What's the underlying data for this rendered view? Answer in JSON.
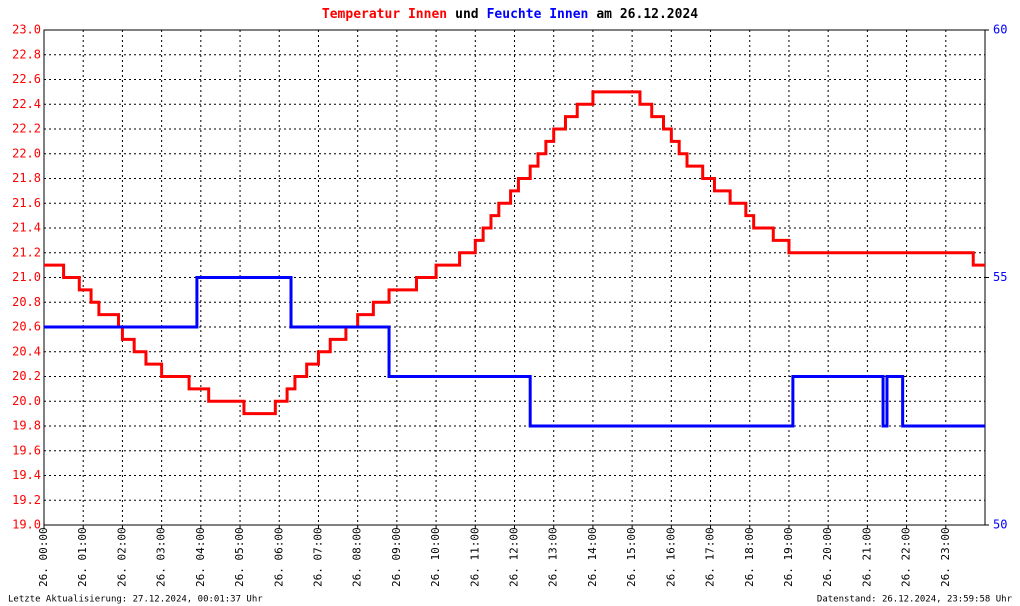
{
  "chart_data": {
    "type": "line",
    "title_parts": [
      {
        "text": "Temperatur Innen",
        "color": "#ff0000"
      },
      {
        "text": "und",
        "color": "#000000"
      },
      {
        "text": "Feuchte Innen",
        "color": "#0000ff"
      },
      {
        "text": "am 26.12.2024",
        "color": "#000000"
      }
    ],
    "footer_left": "Letzte Aktualisierung: 27.12.2024, 00:01:37 Uhr",
    "footer_right": "Datenstand: 26.12.2024, 23:59:58 Uhr",
    "grid": true,
    "xlim": [
      0,
      24
    ],
    "xticks": [
      {
        "value": 0,
        "label": "26. 00:00"
      },
      {
        "value": 1,
        "label": "26. 01:00"
      },
      {
        "value": 2,
        "label": "26. 02:00"
      },
      {
        "value": 3,
        "label": "26. 03:00"
      },
      {
        "value": 4,
        "label": "26. 04:00"
      },
      {
        "value": 5,
        "label": "26. 05:00"
      },
      {
        "value": 6,
        "label": "26. 06:00"
      },
      {
        "value": 7,
        "label": "26. 07:00"
      },
      {
        "value": 8,
        "label": "26. 08:00"
      },
      {
        "value": 9,
        "label": "26. 09:00"
      },
      {
        "value": 10,
        "label": "26. 10:00"
      },
      {
        "value": 11,
        "label": "26. 11:00"
      },
      {
        "value": 12,
        "label": "26. 12:00"
      },
      {
        "value": 13,
        "label": "26. 13:00"
      },
      {
        "value": 14,
        "label": "26. 14:00"
      },
      {
        "value": 15,
        "label": "26. 15:00"
      },
      {
        "value": 16,
        "label": "26. 16:00"
      },
      {
        "value": 17,
        "label": "26. 17:00"
      },
      {
        "value": 18,
        "label": "26. 18:00"
      },
      {
        "value": 19,
        "label": "26. 19:00"
      },
      {
        "value": 20,
        "label": "26. 20:00"
      },
      {
        "value": 21,
        "label": "26. 21:00"
      },
      {
        "value": 22,
        "label": "26. 22:00"
      },
      {
        "value": 23,
        "label": "26. 23:00"
      }
    ],
    "ylim": [
      19,
      23
    ],
    "yticks": [
      {
        "value": 19,
        "label": "19.0"
      },
      19.2,
      19.4,
      19.6,
      19.8,
      {
        "value": 20,
        "label": "20.0"
      },
      20.2,
      20.4,
      20.6,
      20.8,
      {
        "value": 21,
        "label": "21.0"
      },
      21.2,
      21.4,
      21.6,
      21.8,
      {
        "value": 22,
        "label": "22.0"
      },
      22.2,
      22.4,
      22.6,
      22.8,
      {
        "value": 23,
        "label": "23.0"
      }
    ],
    "y_color": "#ff0000",
    "y2lim": [
      50,
      60
    ],
    "y2ticks": [
      50,
      55,
      60
    ],
    "y2_color": "#0000ff",
    "series": [
      {
        "name": "Temperatur Innen",
        "color": "#ff0000",
        "x": [
          0,
          0.5,
          0.5,
          0.9,
          0.9,
          1.2,
          1.2,
          1.4,
          1.4,
          1.9,
          1.9,
          2.0,
          2.0,
          2.3,
          2.3,
          2.6,
          2.6,
          3.0,
          3.0,
          3.7,
          3.7,
          4.2,
          4.2,
          5.1,
          5.1,
          5.9,
          5.9,
          6.2,
          6.2,
          6.4,
          6.4,
          6.7,
          6.7,
          7.0,
          7.0,
          7.3,
          7.3,
          7.7,
          7.7,
          8.0,
          8.0,
          8.4,
          8.4,
          8.8,
          8.8,
          9.5,
          9.5,
          10.0,
          10.0,
          10.6,
          10.6,
          11.0,
          11.0,
          11.2,
          11.2,
          11.4,
          11.4,
          11.6,
          11.6,
          11.9,
          11.9,
          12.1,
          12.1,
          12.4,
          12.4,
          12.6,
          12.6,
          12.8,
          12.8,
          13.0,
          13.0,
          13.3,
          13.3,
          13.6,
          13.6,
          14.0,
          14.0,
          15.2,
          15.2,
          15.5,
          15.5,
          15.8,
          15.8,
          16.0,
          16.0,
          16.2,
          16.2,
          16.4,
          16.4,
          16.8,
          16.8,
          17.1,
          17.1,
          17.5,
          17.5,
          17.9,
          17.9,
          18.1,
          18.1,
          18.6,
          18.6,
          19.0,
          19.0,
          23.7,
          23.7,
          24
        ],
        "values": [
          21.1,
          21.1,
          21.0,
          21.0,
          20.9,
          20.9,
          20.8,
          20.8,
          20.7,
          20.7,
          20.6,
          20.6,
          20.5,
          20.5,
          20.4,
          20.4,
          20.3,
          20.3,
          20.2,
          20.2,
          20.1,
          20.1,
          20.0,
          20.0,
          19.9,
          19.9,
          20.0,
          20.0,
          20.1,
          20.1,
          20.2,
          20.2,
          20.3,
          20.3,
          20.4,
          20.4,
          20.5,
          20.5,
          20.6,
          20.6,
          20.7,
          20.7,
          20.8,
          20.8,
          20.9,
          20.9,
          21.0,
          21.0,
          21.1,
          21.1,
          21.2,
          21.2,
          21.3,
          21.3,
          21.4,
          21.4,
          21.5,
          21.5,
          21.6,
          21.6,
          21.7,
          21.7,
          21.8,
          21.8,
          21.9,
          21.9,
          22.0,
          22.0,
          22.1,
          22.1,
          22.2,
          22.2,
          22.3,
          22.3,
          22.4,
          22.4,
          22.5,
          22.5,
          22.4,
          22.4,
          22.3,
          22.3,
          22.2,
          22.2,
          22.1,
          22.1,
          22.0,
          22.0,
          21.9,
          21.9,
          21.8,
          21.8,
          21.7,
          21.7,
          21.6,
          21.6,
          21.5,
          21.5,
          21.4,
          21.4,
          21.3,
          21.3,
          21.2,
          21.2,
          21.1,
          21.1
        ]
      },
      {
        "name": "Feuchte Innen",
        "color": "#0000ff",
        "axis": "y2",
        "x": [
          0,
          3.9,
          3.9,
          6.3,
          6.3,
          8.8,
          8.8,
          12.4,
          12.4,
          19.1,
          19.1,
          21.4,
          21.4,
          21.5,
          21.5,
          21.9,
          21.9,
          24
        ],
        "values": [
          54,
          54,
          55,
          55,
          54,
          54,
          53,
          53,
          52,
          52,
          53,
          53,
          52,
          52,
          53,
          53,
          52,
          52
        ]
      }
    ]
  }
}
